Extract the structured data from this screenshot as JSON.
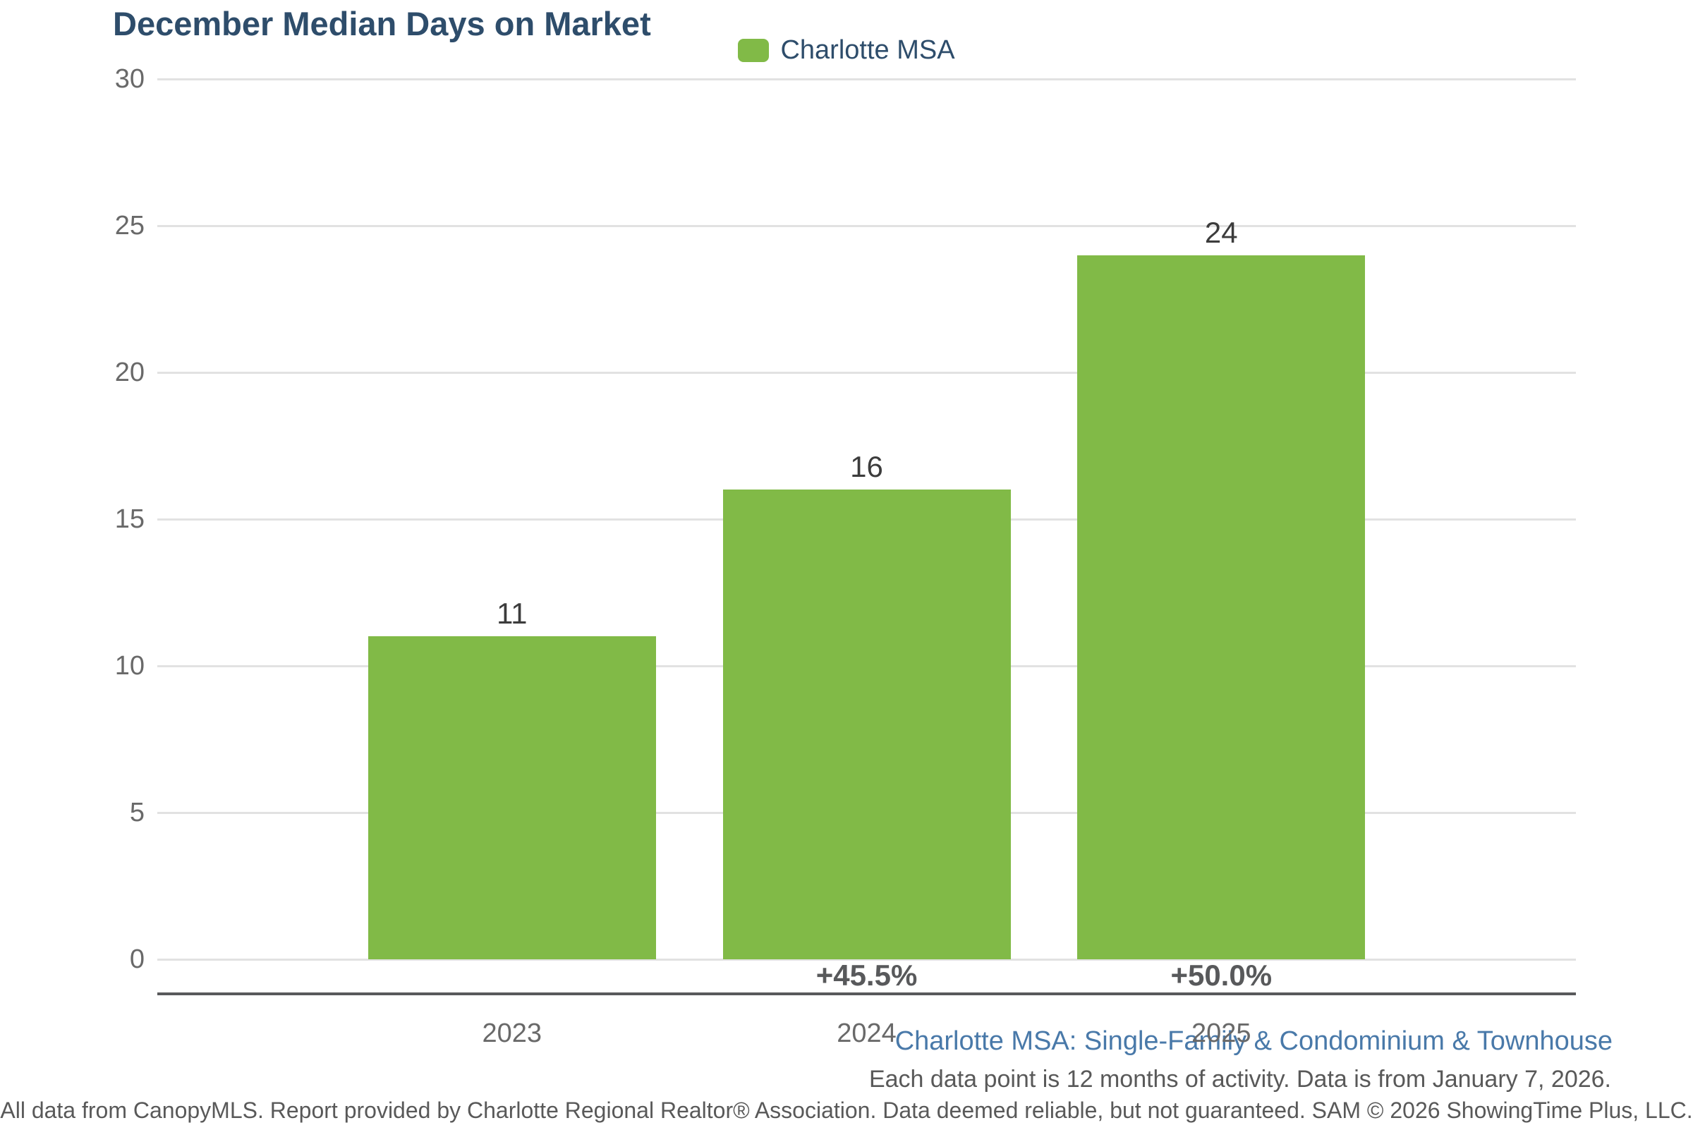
{
  "title": "December Median Days on Market",
  "legend": {
    "label": "Charlotte MSA",
    "swatch_icon": "legend-swatch-green-square"
  },
  "chart_data": {
    "type": "bar",
    "title": "December Median Days on Market",
    "categories": [
      "2023",
      "2024",
      "2025"
    ],
    "series": [
      {
        "name": "Charlotte MSA",
        "values": [
          11,
          16,
          24
        ]
      }
    ],
    "values": [
      11,
      16,
      24
    ],
    "data_labels": [
      "11",
      "16",
      "24"
    ],
    "pct_change_labels": [
      "",
      "+45.5%",
      "+50.0%"
    ],
    "xlabel": "",
    "ylabel": "",
    "ylim": [
      0,
      30
    ],
    "yticks": [
      0,
      5,
      10,
      15,
      20,
      25,
      30
    ],
    "grid": true,
    "legend_position": "top-center"
  },
  "footnotes": {
    "segment": "Charlotte MSA: Single-Family & Condominium & Townhouse",
    "activity": "Each data point is 12 months of activity. Data is from January 7, 2026.",
    "disclaimer": "All data from CanopyMLS. Report provided by Charlotte Regional Realtor® Association. Data deemed reliable, but not guaranteed. SAM © 2026 ShowingTime Plus, LLC."
  },
  "colors": {
    "bar": "#81BA47",
    "title_text": "#2E4D6B",
    "legend_text": "#2E4D6B",
    "tick_text": "#696969",
    "value_text": "#3C3C3C",
    "pct_text": "#58595B",
    "axis_line": "#58595B",
    "gridline": "#E2E2E2",
    "footnote_blue": "#4979A9",
    "footnote_gray": "#595959"
  }
}
